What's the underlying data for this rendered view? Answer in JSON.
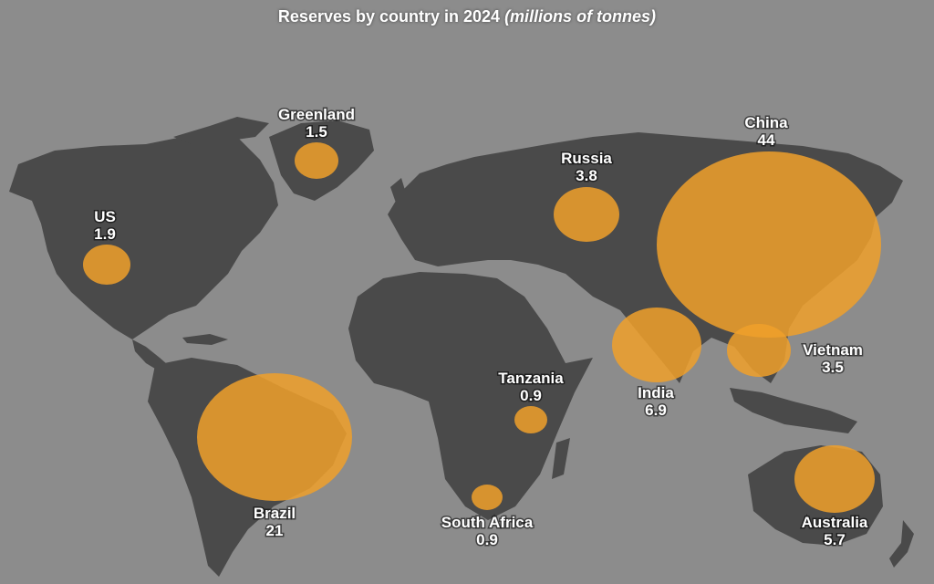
{
  "title": {
    "main": "Reserves by country in 2024",
    "sub": "(millions of tonnes)"
  },
  "colors": {
    "background": "#8c8c8c",
    "land": "#4a4a4a",
    "bubble": "#f0a02a",
    "text": "#ffffff"
  },
  "reserves": [
    {
      "country": "Greenland",
      "value": "1.5"
    },
    {
      "country": "US",
      "value": "1.9"
    },
    {
      "country": "Russia",
      "value": "3.8"
    },
    {
      "country": "China",
      "value": "44"
    },
    {
      "country": "India",
      "value": "6.9"
    },
    {
      "country": "Vietnam",
      "value": "3.5"
    },
    {
      "country": "Tanzania",
      "value": "0.9"
    },
    {
      "country": "Brazil",
      "value": "21"
    },
    {
      "country": "South Africa",
      "value": "0.9"
    },
    {
      "country": "Australia",
      "value": "5.7"
    }
  ]
}
